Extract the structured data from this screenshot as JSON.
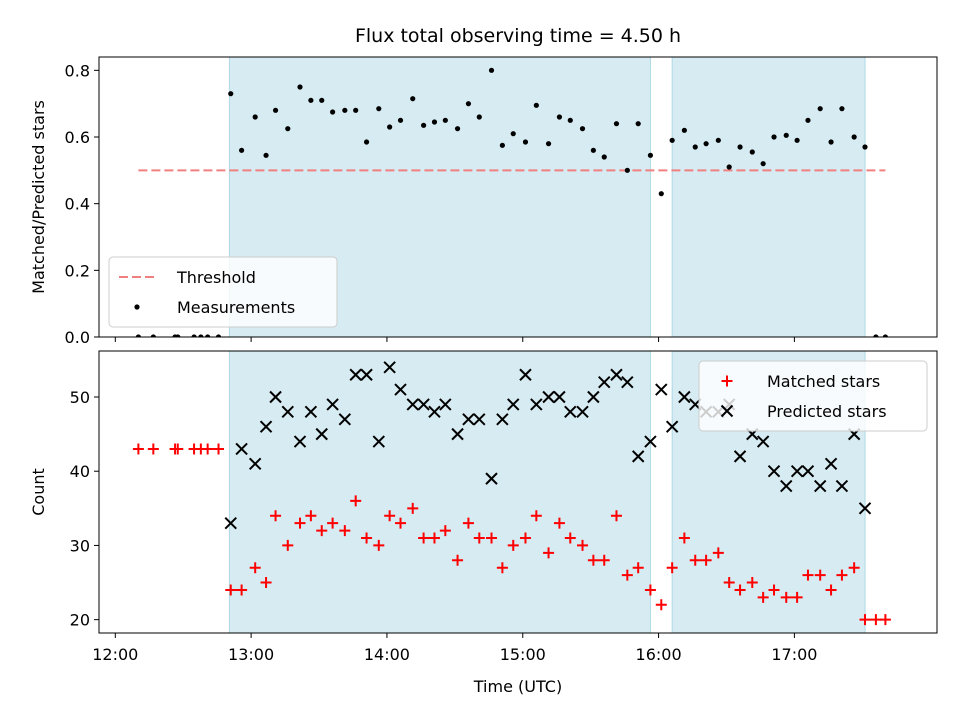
{
  "chart_data": {
    "title": "Flux total observing time = 4.50 h",
    "xlabel": "Time (UTC)",
    "x_unit": "hours UTC",
    "x_ticks": [
      {
        "value": 12,
        "label": "12:00"
      },
      {
        "value": 13,
        "label": "13:00"
      },
      {
        "value": 14,
        "label": "14:00"
      },
      {
        "value": 15,
        "label": "15:00"
      },
      {
        "value": 16,
        "label": "16:00"
      },
      {
        "value": 17,
        "label": "17:00"
      }
    ],
    "xlim": [
      11.88,
      18.05
    ],
    "observing_windows": [
      {
        "start": 12.84,
        "end": 15.94
      },
      {
        "start": 16.1,
        "end": 17.52
      }
    ],
    "window_color": "#add8e6",
    "panels": [
      {
        "type": "scatter",
        "ylabel": "Matched/Predicted stars",
        "ylim": [
          0,
          0.84
        ],
        "y_ticks": [
          {
            "value": 0.0,
            "label": "0.0"
          },
          {
            "value": 0.2,
            "label": "0.2"
          },
          {
            "value": 0.4,
            "label": "0.4"
          },
          {
            "value": 0.6,
            "label": "0.6"
          },
          {
            "value": 0.8,
            "label": "0.8"
          }
        ],
        "legend_placement": "lower-left",
        "threshold": {
          "name": "Threshold",
          "y": 0.5,
          "x_range": [
            12.17,
            17.67
          ],
          "color": "#f08080"
        },
        "series": [
          {
            "name": "Measurements",
            "marker": "dot",
            "color": "#000000",
            "x": [
              12.17,
              12.28,
              12.44,
              12.46,
              12.58,
              12.63,
              12.68,
              12.76,
              12.85,
              12.93,
              13.03,
              13.11,
              13.18,
              13.27,
              13.36,
              13.44,
              13.52,
              13.6,
              13.69,
              13.77,
              13.85,
              13.94,
              14.02,
              14.1,
              14.19,
              14.27,
              14.35,
              14.43,
              14.52,
              14.6,
              14.68,
              14.77,
              14.85,
              14.93,
              15.02,
              15.1,
              15.19,
              15.27,
              15.35,
              15.44,
              15.52,
              15.6,
              15.69,
              15.77,
              15.85,
              15.94,
              16.02,
              16.1,
              16.19,
              16.27,
              16.35,
              16.44,
              16.52,
              16.6,
              16.69,
              16.77,
              16.85,
              16.94,
              17.02,
              17.1,
              17.19,
              17.27,
              17.35,
              17.44,
              17.52,
              17.6,
              17.67
            ],
            "y": [
              0.0,
              0.0,
              0.0,
              0.0,
              0.0,
              0.0,
              0.0,
              0.0,
              0.73,
              0.56,
              0.66,
              0.545,
              0.68,
              0.625,
              0.75,
              0.71,
              0.71,
              0.675,
              0.68,
              0.68,
              0.585,
              0.685,
              0.63,
              0.65,
              0.715,
              0.635,
              0.645,
              0.65,
              0.625,
              0.7,
              0.66,
              0.8,
              0.575,
              0.61,
              0.585,
              0.695,
              0.58,
              0.66,
              0.65,
              0.625,
              0.56,
              0.54,
              0.64,
              0.5,
              0.64,
              0.545,
              0.43,
              0.59,
              0.62,
              0.57,
              0.58,
              0.59,
              0.51,
              0.57,
              0.555,
              0.52,
              0.6,
              0.605,
              0.59,
              0.65,
              0.685,
              0.585,
              0.685,
              0.6,
              0.57,
              0.0,
              0.0
            ]
          }
        ]
      },
      {
        "type": "scatter",
        "ylabel": "Count",
        "ylim": [
          18.2,
          56.2
        ],
        "y_ticks": [
          {
            "value": 20,
            "label": "20"
          },
          {
            "value": 30,
            "label": "30"
          },
          {
            "value": 40,
            "label": "40"
          },
          {
            "value": 50,
            "label": "50"
          }
        ],
        "legend_placement": "upper-right",
        "series": [
          {
            "name": "Matched stars",
            "marker": "plus",
            "color": "#ff0000",
            "x": [
              12.17,
              12.28,
              12.44,
              12.46,
              12.58,
              12.63,
              12.68,
              12.76,
              12.85,
              12.93,
              13.03,
              13.11,
              13.18,
              13.27,
              13.36,
              13.44,
              13.52,
              13.6,
              13.69,
              13.77,
              13.85,
              13.94,
              14.02,
              14.1,
              14.19,
              14.27,
              14.35,
              14.43,
              14.52,
              14.6,
              14.68,
              14.77,
              14.85,
              14.93,
              15.02,
              15.1,
              15.19,
              15.27,
              15.35,
              15.44,
              15.52,
              15.6,
              15.69,
              15.77,
              15.85,
              15.94,
              16.02,
              16.1,
              16.19,
              16.27,
              16.35,
              16.44,
              16.52,
              16.6,
              16.69,
              16.77,
              16.85,
              16.94,
              17.02,
              17.1,
              17.19,
              17.27,
              17.35,
              17.44,
              17.52,
              17.6,
              17.67
            ],
            "y": [
              43,
              43,
              43,
              43,
              43,
              43,
              43,
              43,
              24,
              24,
              27,
              25,
              34,
              30,
              33,
              34,
              32,
              33,
              32,
              36,
              31,
              30,
              34,
              33,
              35,
              31,
              31,
              32,
              28,
              33,
              31,
              31,
              27,
              30,
              31,
              34,
              29,
              33,
              31,
              30,
              28,
              28,
              34,
              26,
              27,
              24,
              22,
              27,
              31,
              28,
              28,
              29,
              25,
              24,
              25,
              23,
              24,
              23,
              23,
              26,
              26,
              24,
              26,
              27,
              20,
              20,
              20
            ]
          },
          {
            "name": "Predicted stars",
            "marker": "x",
            "color": "#000000",
            "x": [
              12.85,
              12.93,
              13.03,
              13.11,
              13.18,
              13.27,
              13.36,
              13.44,
              13.52,
              13.6,
              13.69,
              13.77,
              13.85,
              13.94,
              14.02,
              14.1,
              14.19,
              14.27,
              14.35,
              14.43,
              14.52,
              14.6,
              14.68,
              14.77,
              14.85,
              14.93,
              15.02,
              15.1,
              15.19,
              15.27,
              15.35,
              15.44,
              15.52,
              15.6,
              15.69,
              15.77,
              15.85,
              15.94,
              16.02,
              16.1,
              16.19,
              16.27,
              16.35,
              16.44,
              16.52,
              16.6,
              16.69,
              16.77,
              16.85,
              16.94,
              17.02,
              17.1,
              17.19,
              17.27,
              17.35,
              17.44,
              17.52
            ],
            "y": [
              33,
              43,
              41,
              46,
              50,
              48,
              44,
              48,
              45,
              49,
              47,
              53,
              53,
              44,
              54,
              51,
              49,
              49,
              48,
              49,
              45,
              47,
              47,
              39,
              47,
              49,
              53,
              49,
              50,
              50,
              48,
              48,
              50,
              52,
              53,
              52,
              42,
              44,
              51,
              46,
              50,
              49,
              48,
              48,
              49,
              42,
              45,
              44,
              40,
              38,
              40,
              40,
              38,
              41,
              38,
              45,
              35
            ]
          }
        ]
      }
    ]
  }
}
